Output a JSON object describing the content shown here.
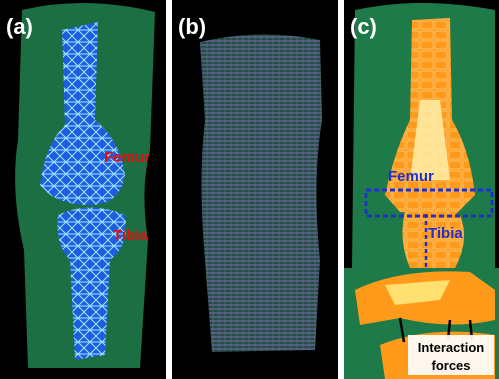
{
  "panels": [
    {
      "label": "(a)",
      "annotations": [
        "Femur",
        "Tibia"
      ]
    },
    {
      "label": "(b)"
    },
    {
      "label": "(c)",
      "annotations": [
        "Femur",
        "Tibia"
      ],
      "inset": {
        "label_lines": [
          "Interaction",
          "forces"
        ]
      }
    }
  ]
}
